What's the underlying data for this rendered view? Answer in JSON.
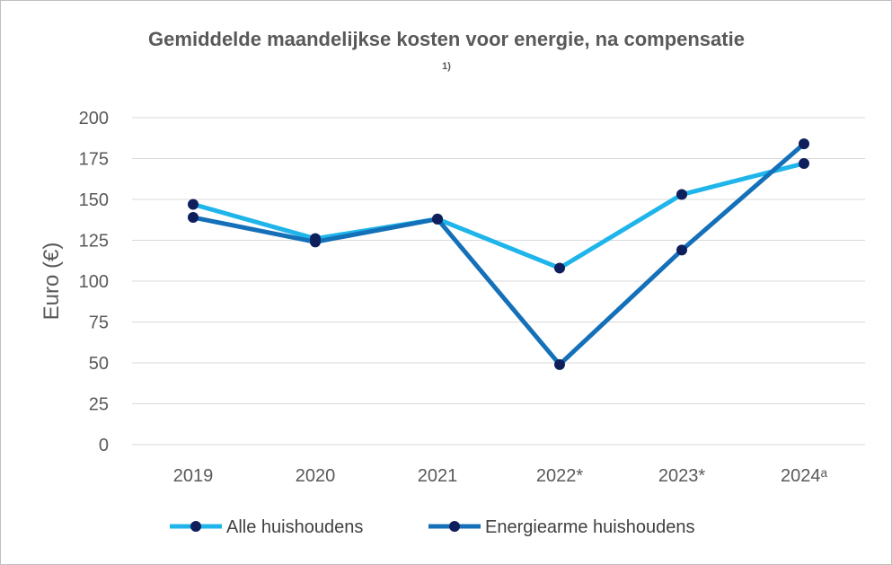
{
  "chart_data": {
    "type": "line",
    "title": "Gemiddelde maandelijkse kosten voor energie, na compensatie",
    "subtitle": "1)",
    "xlabel": "",
    "ylabel": "Euro (€)",
    "ylim": [
      0,
      200
    ],
    "yticks": [
      0,
      25,
      50,
      75,
      100,
      125,
      150,
      175,
      200
    ],
    "grid": true,
    "legend_position": "bottom",
    "categories": [
      "2019",
      "2020",
      "2021",
      "2022*",
      "2023*",
      "2024ᵃ"
    ],
    "series": [
      {
        "name": "Alle huishoudens",
        "color": "#1FB5EA",
        "values": [
          147,
          126,
          138,
          108,
          153,
          172
        ]
      },
      {
        "name": "Energiearme huishoudens",
        "color": "#1470B8",
        "values": [
          139,
          124,
          138,
          49,
          119,
          184
        ]
      }
    ],
    "marker_color": "#0F1F5C"
  }
}
